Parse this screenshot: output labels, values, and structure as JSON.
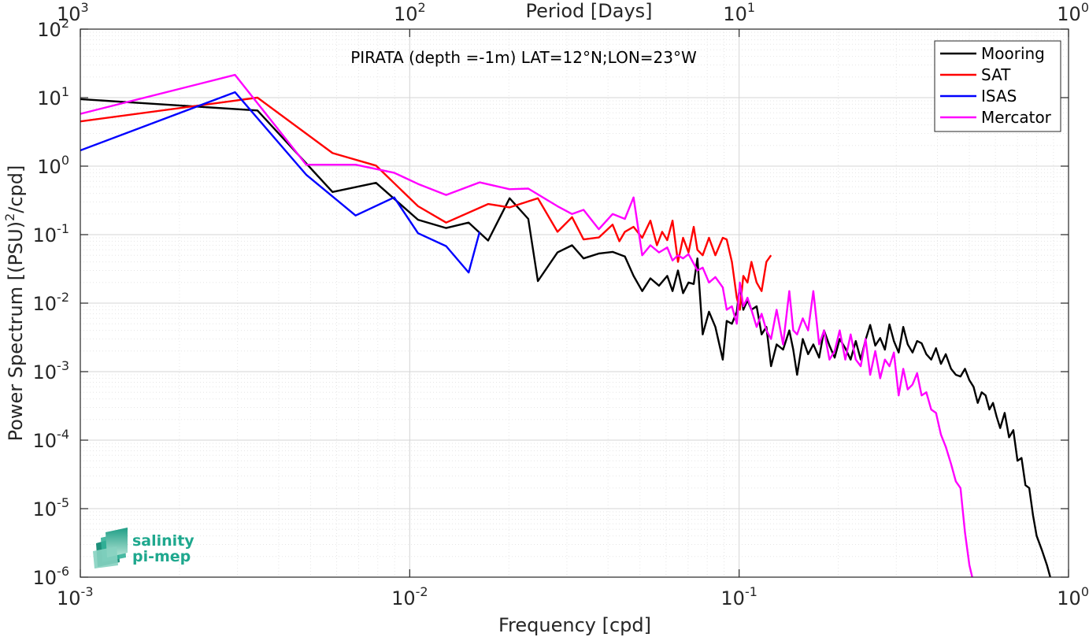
{
  "chart_data": {
    "type": "line",
    "title": "PIRATA (depth =-1m) LAT=12°N;LON=23°W",
    "xlabel": "Frequency [cpd]",
    "ylabel": "Power Spectrum [(PSU)²/cpd]",
    "top_xlabel": "Period [Days]",
    "x_scale": "log",
    "y_scale": "log",
    "xlim": [
      0.001,
      1
    ],
    "ylim": [
      1e-06,
      100
    ],
    "x_ticks": [
      0.001,
      0.01,
      0.1,
      1
    ],
    "x_tick_labels": [
      {
        "base": "10",
        "exp": "-3"
      },
      {
        "base": "10",
        "exp": "-2"
      },
      {
        "base": "10",
        "exp": "-1"
      },
      {
        "base": "10",
        "exp": "0"
      }
    ],
    "top_tick_labels": [
      {
        "base": "10",
        "exp": "3"
      },
      {
        "base": "10",
        "exp": "2"
      },
      {
        "base": "10",
        "exp": "1"
      },
      {
        "base": "10",
        "exp": "0"
      }
    ],
    "y_ticks": [
      1e-06,
      1e-05,
      0.0001,
      0.001,
      0.01,
      0.1,
      1,
      10,
      100
    ],
    "y_tick_labels": [
      {
        "base": "10",
        "exp": "-6"
      },
      {
        "base": "10",
        "exp": "-5"
      },
      {
        "base": "10",
        "exp": "-4"
      },
      {
        "base": "10",
        "exp": "-3"
      },
      {
        "base": "10",
        "exp": "-2"
      },
      {
        "base": "10",
        "exp": "-1"
      },
      {
        "base": "10",
        "exp": "0"
      },
      {
        "base": "10",
        "exp": "1"
      },
      {
        "base": "10",
        "exp": "2"
      }
    ],
    "grid": true,
    "legend_position": "top-right",
    "series": [
      {
        "name": "Mooring",
        "color": "#000000",
        "points": [
          [
            0.001,
            9.5
          ],
          [
            0.00345,
            6.5
          ],
          [
            0.00583,
            0.42
          ],
          [
            0.0079,
            0.57
          ],
          [
            0.0106,
            0.165
          ],
          [
            0.0129,
            0.125
          ],
          [
            0.0151,
            0.15
          ],
          [
            0.0173,
            0.082
          ],
          [
            0.0201,
            0.34
          ],
          [
            0.0229,
            0.17
          ],
          [
            0.0245,
            0.021
          ],
          [
            0.0281,
            0.055
          ],
          [
            0.0311,
            0.07
          ],
          [
            0.0337,
            0.045
          ],
          [
            0.0375,
            0.053
          ],
          [
            0.0413,
            0.056
          ],
          [
            0.045,
            0.048
          ],
          [
            0.0478,
            0.025
          ],
          [
            0.0508,
            0.015
          ],
          [
            0.0538,
            0.023
          ],
          [
            0.0571,
            0.018
          ],
          [
            0.0605,
            0.025
          ],
          [
            0.0628,
            0.015
          ],
          [
            0.0652,
            0.03
          ],
          [
            0.0676,
            0.014
          ],
          [
            0.0702,
            0.02
          ],
          [
            0.0728,
            0.019
          ],
          [
            0.0747,
            0.045
          ],
          [
            0.0775,
            0.0035
          ],
          [
            0.081,
            0.0075
          ],
          [
            0.0847,
            0.0045
          ],
          [
            0.0892,
            0.0015
          ],
          [
            0.0917,
            0.0055
          ],
          [
            0.0951,
            0.005
          ],
          [
            0.0984,
            0.0075
          ],
          [
            0.1005,
            0.018
          ],
          [
            0.103,
            0.008
          ],
          [
            0.106,
            0.011
          ],
          [
            0.109,
            0.008
          ],
          [
            0.113,
            0.009
          ],
          [
            0.117,
            0.0035
          ],
          [
            0.121,
            0.0045
          ],
          [
            0.125,
            0.0012
          ],
          [
            0.13,
            0.0025
          ],
          [
            0.136,
            0.0021
          ],
          [
            0.142,
            0.004
          ],
          [
            0.146,
            0.0021
          ],
          [
            0.15,
            0.0009
          ],
          [
            0.156,
            0.003
          ],
          [
            0.162,
            0.0018
          ],
          [
            0.168,
            0.0025
          ],
          [
            0.175,
            0.0016
          ],
          [
            0.181,
            0.004
          ],
          [
            0.188,
            0.0024
          ],
          [
            0.195,
            0.0016
          ],
          [
            0.202,
            0.003
          ],
          [
            0.21,
            0.0022
          ],
          [
            0.218,
            0.0015
          ],
          [
            0.226,
            0.0028
          ],
          [
            0.234,
            0.0015
          ],
          [
            0.242,
            0.0029
          ],
          [
            0.25,
            0.0048
          ],
          [
            0.259,
            0.0024
          ],
          [
            0.268,
            0.0031
          ],
          [
            0.277,
            0.0021
          ],
          [
            0.286,
            0.0049
          ],
          [
            0.295,
            0.0028
          ],
          [
            0.305,
            0.0019
          ],
          [
            0.315,
            0.0045
          ],
          [
            0.325,
            0.0025
          ],
          [
            0.336,
            0.0019
          ],
          [
            0.347,
            0.0028
          ],
          [
            0.358,
            0.0026
          ],
          [
            0.37,
            0.0018
          ],
          [
            0.383,
            0.0015
          ],
          [
            0.396,
            0.0022
          ],
          [
            0.41,
            0.0013
          ],
          [
            0.424,
            0.0018
          ],
          [
            0.44,
            0.0011
          ],
          [
            0.455,
            0.0009
          ],
          [
            0.47,
            0.00085
          ],
          [
            0.485,
            0.0011
          ],
          [
            0.5,
            0.00075
          ],
          [
            0.515,
            0.0006
          ],
          [
            0.53,
            0.00035
          ],
          [
            0.545,
            0.0005
          ],
          [
            0.56,
            0.00045
          ],
          [
            0.575,
            0.00028
          ],
          [
            0.59,
            0.00035
          ],
          [
            0.605,
            0.00022
          ],
          [
            0.62,
            0.00015
          ],
          [
            0.64,
            0.00025
          ],
          [
            0.66,
            0.00011
          ],
          [
            0.68,
            0.00014
          ],
          [
            0.7,
            5e-05
          ],
          [
            0.72,
            5.5e-05
          ],
          [
            0.74,
            2.2e-05
          ],
          [
            0.76,
            2e-05
          ],
          [
            0.78,
            8e-06
          ],
          [
            0.8,
            4e-06
          ],
          [
            0.83,
            2.5e-06
          ],
          [
            0.86,
            1.5e-06
          ],
          [
            0.88,
            1e-06
          ]
        ]
      },
      {
        "name": "SAT",
        "color": "#ff0000",
        "points": [
          [
            0.001,
            4.5
          ],
          [
            0.00345,
            10
          ],
          [
            0.00583,
            1.55
          ],
          [
            0.0079,
            1.02
          ],
          [
            0.0106,
            0.26
          ],
          [
            0.0129,
            0.15
          ],
          [
            0.0173,
            0.28
          ],
          [
            0.0201,
            0.25
          ],
          [
            0.0245,
            0.34
          ],
          [
            0.0281,
            0.11
          ],
          [
            0.0311,
            0.18
          ],
          [
            0.0337,
            0.085
          ],
          [
            0.0375,
            0.091
          ],
          [
            0.0413,
            0.14
          ],
          [
            0.0433,
            0.08
          ],
          [
            0.045,
            0.11
          ],
          [
            0.0478,
            0.13
          ],
          [
            0.0508,
            0.09
          ],
          [
            0.0538,
            0.16
          ],
          [
            0.0563,
            0.07
          ],
          [
            0.0584,
            0.11
          ],
          [
            0.0605,
            0.083
          ],
          [
            0.0628,
            0.16
          ],
          [
            0.0652,
            0.04
          ],
          [
            0.0676,
            0.09
          ],
          [
            0.0702,
            0.055
          ],
          [
            0.0728,
            0.13
          ],
          [
            0.0747,
            0.06
          ],
          [
            0.0775,
            0.05
          ],
          [
            0.081,
            0.09
          ],
          [
            0.0847,
            0.05
          ],
          [
            0.0892,
            0.09
          ],
          [
            0.0917,
            0.085
          ],
          [
            0.0951,
            0.04
          ],
          [
            0.0984,
            0.012
          ],
          [
            0.1005,
            0.008
          ],
          [
            0.103,
            0.025
          ],
          [
            0.106,
            0.02
          ],
          [
            0.109,
            0.04
          ],
          [
            0.113,
            0.02
          ],
          [
            0.117,
            0.015
          ],
          [
            0.121,
            0.04
          ],
          [
            0.125,
            0.05
          ]
        ]
      },
      {
        "name": "ISAS",
        "color": "#0000ff",
        "points": [
          [
            0.001,
            1.7
          ],
          [
            0.00295,
            12
          ],
          [
            0.00485,
            0.75
          ],
          [
            0.00685,
            0.19
          ],
          [
            0.00897,
            0.35
          ],
          [
            0.0106,
            0.105
          ],
          [
            0.0129,
            0.068
          ],
          [
            0.0151,
            0.028
          ],
          [
            0.0163,
            0.11
          ]
        ]
      },
      {
        "name": "Mercator",
        "color": "#ff00ff",
        "points": [
          [
            0.001,
            5.8
          ],
          [
            0.00295,
            21.5
          ],
          [
            0.00485,
            1.05
          ],
          [
            0.00685,
            1.05
          ],
          [
            0.00897,
            0.8
          ],
          [
            0.0106,
            0.55
          ],
          [
            0.0129,
            0.38
          ],
          [
            0.0163,
            0.58
          ],
          [
            0.0201,
            0.46
          ],
          [
            0.0229,
            0.47
          ],
          [
            0.0281,
            0.26
          ],
          [
            0.0311,
            0.2
          ],
          [
            0.0337,
            0.23
          ],
          [
            0.0375,
            0.12
          ],
          [
            0.0413,
            0.2
          ],
          [
            0.045,
            0.17
          ],
          [
            0.0478,
            0.35
          ],
          [
            0.0508,
            0.05
          ],
          [
            0.0538,
            0.07
          ],
          [
            0.0571,
            0.055
          ],
          [
            0.0605,
            0.065
          ],
          [
            0.0628,
            0.042
          ],
          [
            0.0652,
            0.05
          ],
          [
            0.0676,
            0.045
          ],
          [
            0.0702,
            0.052
          ],
          [
            0.0747,
            0.03
          ],
          [
            0.0775,
            0.033
          ],
          [
            0.081,
            0.02
          ],
          [
            0.0847,
            0.024
          ],
          [
            0.0892,
            0.017
          ],
          [
            0.0917,
            0.008
          ],
          [
            0.0951,
            0.009
          ],
          [
            0.0984,
            0.005
          ],
          [
            0.1005,
            0.02
          ],
          [
            0.103,
            0.009
          ],
          [
            0.106,
            0.012
          ],
          [
            0.109,
            0.008
          ],
          [
            0.113,
            0.0045
          ],
          [
            0.117,
            0.007
          ],
          [
            0.121,
            0.004
          ],
          [
            0.125,
            0.003
          ],
          [
            0.13,
            0.008
          ],
          [
            0.136,
            0.0025
          ],
          [
            0.142,
            0.015
          ],
          [
            0.146,
            0.004
          ],
          [
            0.15,
            0.0035
          ],
          [
            0.156,
            0.006
          ],
          [
            0.162,
            0.004
          ],
          [
            0.168,
            0.015
          ],
          [
            0.175,
            0.0025
          ],
          [
            0.181,
            0.004
          ],
          [
            0.188,
            0.0015
          ],
          [
            0.195,
            0.002
          ],
          [
            0.202,
            0.004
          ],
          [
            0.21,
            0.0015
          ],
          [
            0.218,
            0.0035
          ],
          [
            0.226,
            0.0015
          ],
          [
            0.234,
            0.0012
          ],
          [
            0.242,
            0.003
          ],
          [
            0.25,
            0.0009
          ],
          [
            0.259,
            0.002
          ],
          [
            0.268,
            0.0008
          ],
          [
            0.277,
            0.0015
          ],
          [
            0.286,
            0.0012
          ],
          [
            0.295,
            0.0019
          ],
          [
            0.305,
            0.00045
          ],
          [
            0.315,
            0.0011
          ],
          [
            0.325,
            0.00055
          ],
          [
            0.336,
            0.00065
          ],
          [
            0.347,
            0.00095
          ],
          [
            0.358,
            0.00045
          ],
          [
            0.37,
            0.0005
          ],
          [
            0.383,
            0.00028
          ],
          [
            0.396,
            0.00025
          ],
          [
            0.41,
            0.00012
          ],
          [
            0.424,
            8e-05
          ],
          [
            0.44,
            4.5e-05
          ],
          [
            0.455,
            2.5e-05
          ],
          [
            0.47,
            2e-05
          ],
          [
            0.485,
            4.5e-06
          ],
          [
            0.5,
            1.5e-06
          ],
          [
            0.51,
            1e-06
          ]
        ]
      }
    ]
  },
  "logo": {
    "line1": "salinity",
    "line2": "pi-mep"
  }
}
